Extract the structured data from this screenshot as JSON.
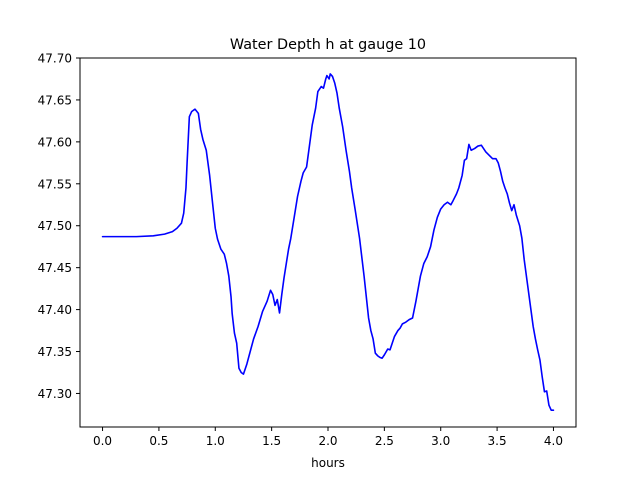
{
  "chart_data": {
    "type": "line",
    "title": "Water Depth h at gauge 10",
    "xlabel": "hours",
    "ylabel": "",
    "xlim": [
      -0.2,
      4.2
    ],
    "ylim": [
      47.26,
      47.7
    ],
    "grid": false,
    "xticks": [
      0.0,
      0.5,
      1.0,
      1.5,
      2.0,
      2.5,
      3.0,
      3.5,
      4.0
    ],
    "xtick_labels": [
      "0.0",
      "0.5",
      "1.0",
      "1.5",
      "2.0",
      "2.5",
      "3.0",
      "3.5",
      "4.0"
    ],
    "yticks": [
      47.3,
      47.35,
      47.4,
      47.45,
      47.5,
      47.55,
      47.6,
      47.65,
      47.7
    ],
    "ytick_labels": [
      "47.30",
      "47.35",
      "47.40",
      "47.45",
      "47.50",
      "47.55",
      "47.60",
      "47.65",
      "47.70"
    ],
    "series": [
      {
        "color": "#0000ff",
        "x": [
          0.0,
          0.3,
          0.45,
          0.55,
          0.62,
          0.66,
          0.7,
          0.72,
          0.74,
          0.75,
          0.77,
          0.79,
          0.82,
          0.85,
          0.87,
          0.89,
          0.92,
          0.95,
          0.98,
          1.0,
          1.02,
          1.05,
          1.08,
          1.1,
          1.12,
          1.14,
          1.15,
          1.17,
          1.19,
          1.21,
          1.23,
          1.25,
          1.28,
          1.31,
          1.34,
          1.38,
          1.42,
          1.46,
          1.49,
          1.51,
          1.53,
          1.55,
          1.57,
          1.59,
          1.61,
          1.63,
          1.65,
          1.67,
          1.7,
          1.73,
          1.76,
          1.78,
          1.81,
          1.83,
          1.86,
          1.89,
          1.91,
          1.94,
          1.96,
          1.98,
          1.99,
          2.01,
          2.02,
          2.04,
          2.06,
          2.08,
          2.1,
          2.13,
          2.16,
          2.19,
          2.21,
          2.24,
          2.28,
          2.32,
          2.36,
          2.38,
          2.4,
          2.42,
          2.44,
          2.46,
          2.48,
          2.5,
          2.53,
          2.55,
          2.57,
          2.59,
          2.62,
          2.64,
          2.66,
          2.69,
          2.72,
          2.75,
          2.78,
          2.8,
          2.82,
          2.85,
          2.88,
          2.91,
          2.94,
          2.97,
          3.0,
          3.03,
          3.06,
          3.09,
          3.11,
          3.14,
          3.16,
          3.19,
          3.21,
          3.23,
          3.25,
          3.27,
          3.3,
          3.33,
          3.36,
          3.38,
          3.4,
          3.43,
          3.46,
          3.49,
          3.51,
          3.53,
          3.55,
          3.57,
          3.59,
          3.61,
          3.63,
          3.65,
          3.67,
          3.7,
          3.72,
          3.74,
          3.77,
          3.8,
          3.82,
          3.84,
          3.86,
          3.88,
          3.9,
          3.92,
          3.94,
          3.96,
          3.98,
          4.0
        ],
        "y": [
          47.487,
          47.487,
          47.488,
          47.49,
          47.493,
          47.497,
          47.503,
          47.515,
          47.545,
          47.575,
          47.63,
          47.636,
          47.639,
          47.634,
          47.615,
          47.603,
          47.59,
          47.56,
          47.522,
          47.497,
          47.484,
          47.472,
          47.466,
          47.455,
          47.44,
          47.415,
          47.395,
          47.372,
          47.36,
          47.33,
          47.325,
          47.323,
          47.335,
          47.35,
          47.365,
          47.38,
          47.398,
          47.41,
          47.423,
          47.418,
          47.405,
          47.412,
          47.396,
          47.418,
          47.438,
          47.455,
          47.472,
          47.485,
          47.51,
          47.535,
          47.553,
          47.563,
          47.57,
          47.59,
          47.62,
          47.64,
          47.66,
          47.666,
          47.664,
          47.675,
          47.679,
          47.675,
          47.681,
          47.678,
          47.67,
          47.658,
          47.64,
          47.618,
          47.59,
          47.565,
          47.545,
          47.52,
          47.485,
          47.44,
          47.39,
          47.375,
          47.365,
          47.348,
          47.345,
          47.343,
          47.342,
          47.346,
          47.353,
          47.352,
          47.36,
          47.368,
          47.375,
          47.378,
          47.383,
          47.385,
          47.388,
          47.39,
          47.41,
          47.425,
          47.44,
          47.455,
          47.463,
          47.475,
          47.495,
          47.51,
          47.52,
          47.525,
          47.528,
          47.525,
          47.53,
          47.538,
          47.545,
          47.56,
          47.578,
          47.58,
          47.597,
          47.59,
          47.592,
          47.595,
          47.596,
          47.592,
          47.588,
          47.584,
          47.58,
          47.58,
          47.575,
          47.565,
          47.553,
          47.545,
          47.538,
          47.527,
          47.518,
          47.525,
          47.513,
          47.5,
          47.485,
          47.46,
          47.43,
          47.4,
          47.38,
          47.365,
          47.352,
          47.34,
          47.32,
          47.302,
          47.303,
          47.286,
          47.28,
          47.28
        ]
      }
    ]
  }
}
